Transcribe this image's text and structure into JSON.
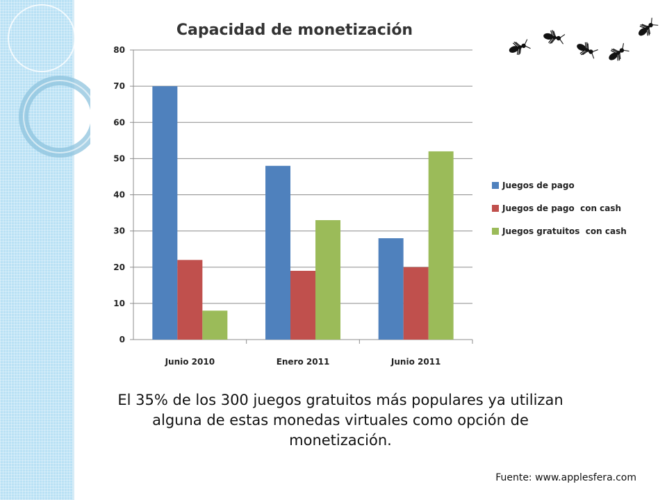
{
  "theme": {
    "side_panel_color": "#b9e1f5",
    "ring_color": "#8ec3de"
  },
  "chart_data": {
    "type": "bar",
    "title": "Capacidad de monetización",
    "categories": [
      "Junio 2010",
      "Enero 2011",
      "Junio 2011"
    ],
    "series": [
      {
        "name": "Juegos de pago",
        "color": "#4f81bd",
        "values": [
          70,
          48,
          28
        ]
      },
      {
        "name": "Juegos de pago  con cash",
        "color": "#c0504d",
        "values": [
          22,
          19,
          20
        ]
      },
      {
        "name": "Juegos gratuitos  con cash",
        "color": "#9bbb59",
        "values": [
          8,
          33,
          52
        ]
      }
    ],
    "ylim": [
      0,
      80
    ],
    "yticks": [
      0,
      10,
      20,
      30,
      40,
      50,
      60,
      70,
      80
    ],
    "grid": true,
    "legend_position": "right"
  },
  "caption": "El 35% de los 300 juegos gratuitos más populares ya utilizan alguna de estas monedas virtuales como opción de monetización.",
  "source": "Fuente: www.applesfera.com",
  "decoration": {
    "ants_icon": "ant-icon"
  }
}
